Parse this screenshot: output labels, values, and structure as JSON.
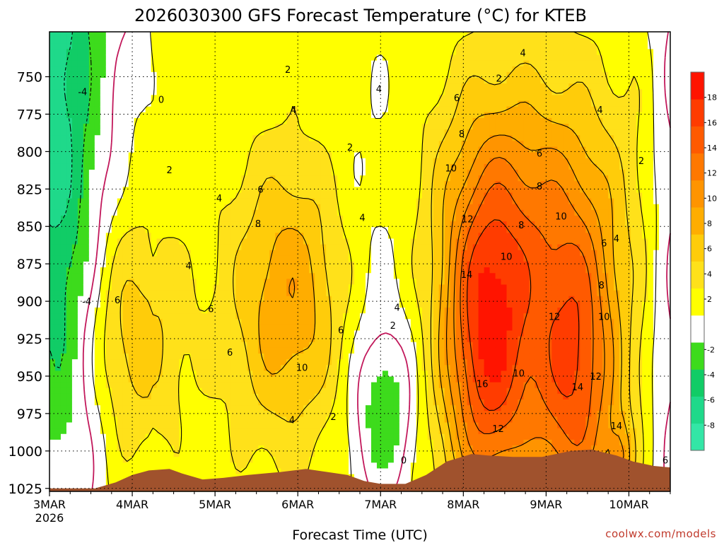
{
  "chart_data": {
    "type": "heatmap",
    "title": "2026030300 GFS Forecast Temperature (°C) for KTEB",
    "xlabel": "Forecast Time (UTC)",
    "ylabel": "",
    "x_ticks": [
      "3MAR",
      "4MAR",
      "5MAR",
      "6MAR",
      "7MAR",
      "8MAR",
      "9MAR",
      "10MAR"
    ],
    "x_tick_year": "2026",
    "x_tick_days": [
      0,
      1,
      2,
      3,
      4,
      5,
      6,
      7
    ],
    "xlim": [
      0,
      7.5
    ],
    "y_ticks": [
      "750",
      "775",
      "800",
      "825",
      "850",
      "875",
      "900",
      "925",
      "950",
      "975",
      "1000",
      "1025"
    ],
    "y_tick_values": [
      750,
      775,
      800,
      825,
      850,
      875,
      900,
      925,
      950,
      975,
      1000,
      1025
    ],
    "ylim": [
      1027,
      720
    ],
    "grid": true,
    "colorbar": {
      "levels": [
        -10,
        -8,
        -6,
        -4,
        -2,
        2,
        4,
        6,
        8,
        10,
        12,
        14,
        16,
        18,
        20
      ],
      "labels": [
        "-8",
        "-6",
        "-4",
        "-2",
        "2",
        "4",
        "6",
        "8",
        "10",
        "12",
        "14",
        "16",
        "18"
      ],
      "label_values": [
        -8,
        -6,
        -4,
        -2,
        2,
        4,
        6,
        8,
        10,
        12,
        14,
        16,
        18
      ],
      "colors": [
        "#33e6a6",
        "#1fd98a",
        "#11cc66",
        "#3ddb1c",
        "#ffffff",
        "#ffff00",
        "#ffe11a",
        "#ffcc0a",
        "#ffad00",
        "#ff9400",
        "#ff7800",
        "#ff5a00",
        "#ff3c00",
        "#ff1400"
      ]
    },
    "terrain_color": "#a0522d",
    "contour_labels": [
      {
        "text": "-4",
        "day": 0.4,
        "p": 760
      },
      {
        "text": "-4",
        "day": 0.45,
        "p": 900
      },
      {
        "text": "0",
        "day": 1.35,
        "p": 765
      },
      {
        "text": "2",
        "day": 2.88,
        "p": 745
      },
      {
        "text": "2",
        "day": 1.45,
        "p": 812
      },
      {
        "text": "2",
        "day": 3.63,
        "p": 797
      },
      {
        "text": "4",
        "day": 2.95,
        "p": 772
      },
      {
        "text": "4",
        "day": 2.05,
        "p": 831
      },
      {
        "text": "4",
        "day": 1.68,
        "p": 876
      },
      {
        "text": "4",
        "day": 3.78,
        "p": 844
      },
      {
        "text": "4",
        "day": 3.98,
        "p": 758
      },
      {
        "text": "4",
        "day": 5.72,
        "p": 734
      },
      {
        "text": "4",
        "day": 6.65,
        "p": 772
      },
      {
        "text": "4",
        "day": 6.85,
        "p": 858
      },
      {
        "text": "4",
        "day": 2.93,
        "p": 979
      },
      {
        "text": "4",
        "day": 4.2,
        "p": 904
      },
      {
        "text": "2",
        "day": 5.43,
        "p": 751
      },
      {
        "text": "2",
        "day": 7.15,
        "p": 806
      },
      {
        "text": "2",
        "day": 4.15,
        "p": 916
      },
      {
        "text": "2",
        "day": 3.43,
        "p": 977
      },
      {
        "text": "0",
        "day": 4.28,
        "p": 1006
      },
      {
        "text": "6",
        "day": 2.55,
        "p": 825
      },
      {
        "text": "6",
        "day": 0.82,
        "p": 899
      },
      {
        "text": "6",
        "day": 1.95,
        "p": 905
      },
      {
        "text": "6",
        "day": 2.18,
        "p": 934
      },
      {
        "text": "6",
        "day": 3.52,
        "p": 919
      },
      {
        "text": "6",
        "day": 4.92,
        "p": 764
      },
      {
        "text": "6",
        "day": 5.92,
        "p": 801
      },
      {
        "text": "6",
        "day": 6.7,
        "p": 861
      },
      {
        "text": "6",
        "day": 7.44,
        "p": 1006
      },
      {
        "text": "8",
        "day": 2.52,
        "p": 848
      },
      {
        "text": "8",
        "day": 4.98,
        "p": 788
      },
      {
        "text": "8",
        "day": 5.92,
        "p": 823
      },
      {
        "text": "8",
        "day": 5.7,
        "p": 849
      },
      {
        "text": "8",
        "day": 6.67,
        "p": 889
      },
      {
        "text": "10",
        "day": 3.05,
        "p": 944
      },
      {
        "text": "10",
        "day": 4.85,
        "p": 811
      },
      {
        "text": "10",
        "day": 5.52,
        "p": 870
      },
      {
        "text": "10",
        "day": 5.67,
        "p": 948
      },
      {
        "text": "10",
        "day": 6.18,
        "p": 843
      },
      {
        "text": "10",
        "day": 6.7,
        "p": 910
      },
      {
        "text": "12",
        "day": 5.05,
        "p": 845
      },
      {
        "text": "12",
        "day": 6.1,
        "p": 910
      },
      {
        "text": "12",
        "day": 6.6,
        "p": 950
      },
      {
        "text": "12",
        "day": 5.42,
        "p": 985
      },
      {
        "text": "14",
        "day": 5.04,
        "p": 882
      },
      {
        "text": "14",
        "day": 6.38,
        "p": 957
      },
      {
        "text": "14",
        "day": 6.85,
        "p": 983
      },
      {
        "text": "16",
        "day": 5.23,
        "p": 955
      }
    ],
    "credit": "coolwx.com/models"
  }
}
